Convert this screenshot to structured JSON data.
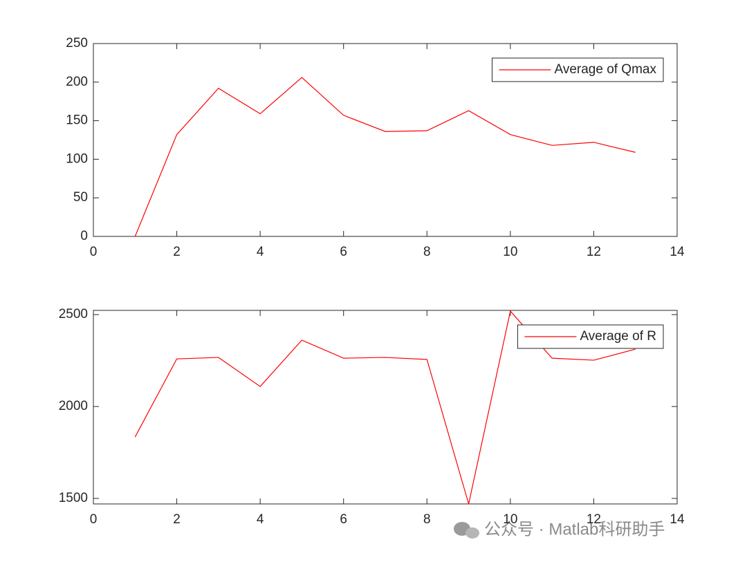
{
  "chart_data": [
    {
      "type": "line",
      "x": [
        1,
        2,
        3,
        4,
        5,
        6,
        7,
        8,
        9,
        10,
        11,
        12,
        13
      ],
      "series": [
        {
          "name": "Average of Qmax",
          "color": "#ff0000",
          "values": [
            0,
            132,
            192,
            159,
            206,
            157,
            136,
            137,
            163,
            132,
            118,
            122,
            109
          ]
        }
      ],
      "xlim": [
        0,
        14
      ],
      "xticks": [
        0,
        2,
        4,
        6,
        8,
        10,
        12,
        14
      ],
      "ylim": [
        0,
        250
      ],
      "yticks": [
        0,
        50,
        100,
        150,
        200,
        250
      ],
      "legend": "northeast",
      "grid": false
    },
    {
      "type": "line",
      "x": [
        1,
        2,
        3,
        4,
        5,
        6,
        7,
        8,
        9,
        10,
        11,
        12,
        13
      ],
      "series": [
        {
          "name": "Average of R",
          "color": "#ff0000",
          "values": [
            1834,
            2259,
            2267,
            2109,
            2361,
            2263,
            2267,
            2256,
            1470,
            2519,
            2263,
            2252,
            2312
          ]
        }
      ],
      "xlim": [
        0,
        14
      ],
      "xticks": [
        0,
        2,
        4,
        6,
        8,
        10,
        12,
        14
      ],
      "ylim": [
        1470,
        2523
      ],
      "yticks": [
        1500,
        2000,
        2500
      ],
      "legend": "northeast",
      "grid": false
    }
  ],
  "watermark": "公众号 · Matlab科研助手"
}
